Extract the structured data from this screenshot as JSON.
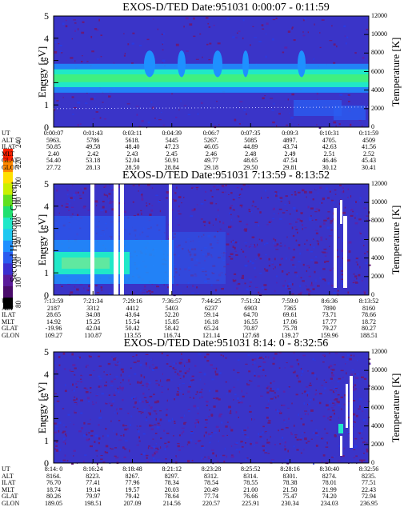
{
  "colorbar": {
    "label": "Second Harmonic Current",
    "ticks": [
      "240",
      "220",
      "200",
      "180",
      "160",
      "140",
      "120",
      "100",
      "80"
    ],
    "colors": [
      "#000000",
      "#4a0c6b",
      "#5a1a9a",
      "#3a2fd0",
      "#2a5cf0",
      "#1e90ff",
      "#1ec8f0",
      "#20e8c8",
      "#20e070",
      "#60e020",
      "#c8f000",
      "#ffe000",
      "#ff8800",
      "#ff2000"
    ]
  },
  "chart_data": [
    {
      "type": "heatmap",
      "title": "EXOS-D/TED",
      "date": "Date:951031",
      "time_range": "0:00:07 - 0:11:59",
      "ylabel": "Energy [eV]",
      "ylabel_right": "Temperature [K]",
      "ylim": [
        0,
        5
      ],
      "ylim_right": [
        0,
        12000
      ],
      "yticks": [
        "0",
        "1",
        "2",
        "3",
        "4",
        "5"
      ],
      "yticks_right": [
        "0",
        "2000",
        "4000",
        "6000",
        "8000",
        "10000",
        "12000"
      ],
      "band": {
        "center_energy_ev": 2.2,
        "width_ev": 0.5
      },
      "temperature_trace_k": 2000,
      "table": {
        "rows": [
          {
            "label": "UT",
            "values": [
              "0:00:07",
              "0:01:43",
              "0:03:11",
              "0:04:39",
              "0:06:7",
              "0:07:35",
              "0:09:3",
              "0:10:31",
              "0:11:59"
            ]
          },
          {
            "label": "ALT",
            "values": [
              "5963.",
              "5786",
              "5618.",
              "5445",
              "5267.",
              "5085",
              "4897.",
              "4705.",
              "4509"
            ]
          },
          {
            "label": "ILAT",
            "values": [
              "50.85",
              "49.58",
              "48.40",
              "47.23",
              "46.05",
              "44.89",
              "43.74",
              "42.63",
              "41.56"
            ]
          },
          {
            "label": "MLT",
            "values": [
              "2.40",
              "2.42",
              "2.43",
              "2.45",
              "2.46",
              "2.48",
              "2.49",
              "2.51",
              "2.52"
            ]
          },
          {
            "label": "GLAT",
            "values": [
              "54.40",
              "53.18",
              "52.04",
              "50.91",
              "49.77",
              "48.65",
              "47.54",
              "46.46",
              "45.43"
            ]
          },
          {
            "label": "GLON",
            "values": [
              "27.72",
              "28.13",
              "28.50",
              "28.84",
              "29.18",
              "29.50",
              "29.81",
              "30.12",
              "30.41"
            ]
          }
        ]
      }
    },
    {
      "type": "heatmap",
      "title": "EXOS-D/TED",
      "date": "Date:951031",
      "time_range": "7:13:59 - 8:13:52",
      "ylabel": "Energy [eV]",
      "ylabel_right": "Temperature [K]",
      "ylim": [
        0,
        5
      ],
      "ylim_right": [
        0,
        12000
      ],
      "yticks": [
        "0",
        "1",
        "2",
        "3",
        "4",
        "5"
      ],
      "yticks_right": [
        "0",
        "2000",
        "4000",
        "6000",
        "8000",
        "10000",
        "12000"
      ],
      "table": {
        "rows": [
          {
            "label": "UT",
            "values": [
              "7:13:59",
              "7:21:34",
              "7:29:16",
              "7:36:57",
              "7:44:25",
              "7:51:32",
              "7:59:0",
              "8:6:36",
              "8:13:52"
            ]
          },
          {
            "label": "ALT",
            "values": [
              "2187",
              "3312",
              "4412",
              "5403",
              "6237",
              "6903",
              "7365",
              "7890",
              "8160"
            ]
          },
          {
            "label": "ILAT",
            "values": [
              "28.65",
              "34.08",
              "43.64",
              "52.20",
              "59.14",
              "64.70",
              "69.61",
              "73.71",
              "78.66"
            ]
          },
          {
            "label": "MLT",
            "values": [
              "14.92",
              "15.25",
              "15.54",
              "15.85",
              "16.18",
              "16.55",
              "17.06",
              "17.77",
              "18.72"
            ]
          },
          {
            "label": "GLAT",
            "values": [
              "-19.96",
              "42.04",
              "50.42",
              "58.42",
              "65.24",
              "70.87",
              "75.78",
              "79.27",
              "80.27"
            ]
          },
          {
            "label": "GLON",
            "values": [
              "109.27",
              "110.87",
              "113.55",
              "116.74",
              "121.14",
              "127.68",
              "139.27",
              "159.96",
              "188.51"
            ]
          }
        ]
      }
    },
    {
      "type": "heatmap",
      "title": "EXOS-D/TED",
      "date": "Date:951031",
      "time_range": "8:14: 0 - 8:32:56",
      "ylabel": "Energy [eV]",
      "ylabel_right": "Temperature [K]",
      "ylim": [
        0,
        5
      ],
      "ylim_right": [
        0,
        12000
      ],
      "yticks": [
        "0",
        "1",
        "2",
        "3",
        "4",
        "5"
      ],
      "yticks_right": [
        "0",
        "2000",
        "4000",
        "6000",
        "8000",
        "10000",
        "12000"
      ],
      "table": {
        "rows": [
          {
            "label": "UT",
            "values": [
              "8:14: 0",
              "8:16:24",
              "8:18:48",
              "8:21:12",
              "8:23:28",
              "8:25:52",
              "8:28:16",
              "8:30:40",
              "8:32:56"
            ]
          },
          {
            "label": "ALT",
            "values": [
              "8164.",
              "8223.",
              "8267.",
              "8297.",
              "8312.",
              "8314.",
              "8301.",
              "8274.",
              "8235."
            ]
          },
          {
            "label": "ILAT",
            "values": [
              "76.70",
              "77.41",
              "77.96",
              "78.34",
              "78.54",
              "78.55",
              "78.38",
              "78.01",
              "77.51"
            ]
          },
          {
            "label": "MLT",
            "values": [
              "18.74",
              "19.14",
              "19.57",
              "20.03",
              "20.49",
              "21.00",
              "21.50",
              "21.99",
              "22.43"
            ]
          },
          {
            "label": "GLAT",
            "values": [
              "80.26",
              "79.97",
              "79.42",
              "78.64",
              "77.74",
              "76.66",
              "75.47",
              "74.20",
              "72.94"
            ]
          },
          {
            "label": "GLON",
            "values": [
              "189.05",
              "198.51",
              "207.09",
              "214.56",
              "220.57",
              "225.91",
              "230.34",
              "234.03",
              "236.95"
            ]
          }
        ]
      }
    }
  ]
}
